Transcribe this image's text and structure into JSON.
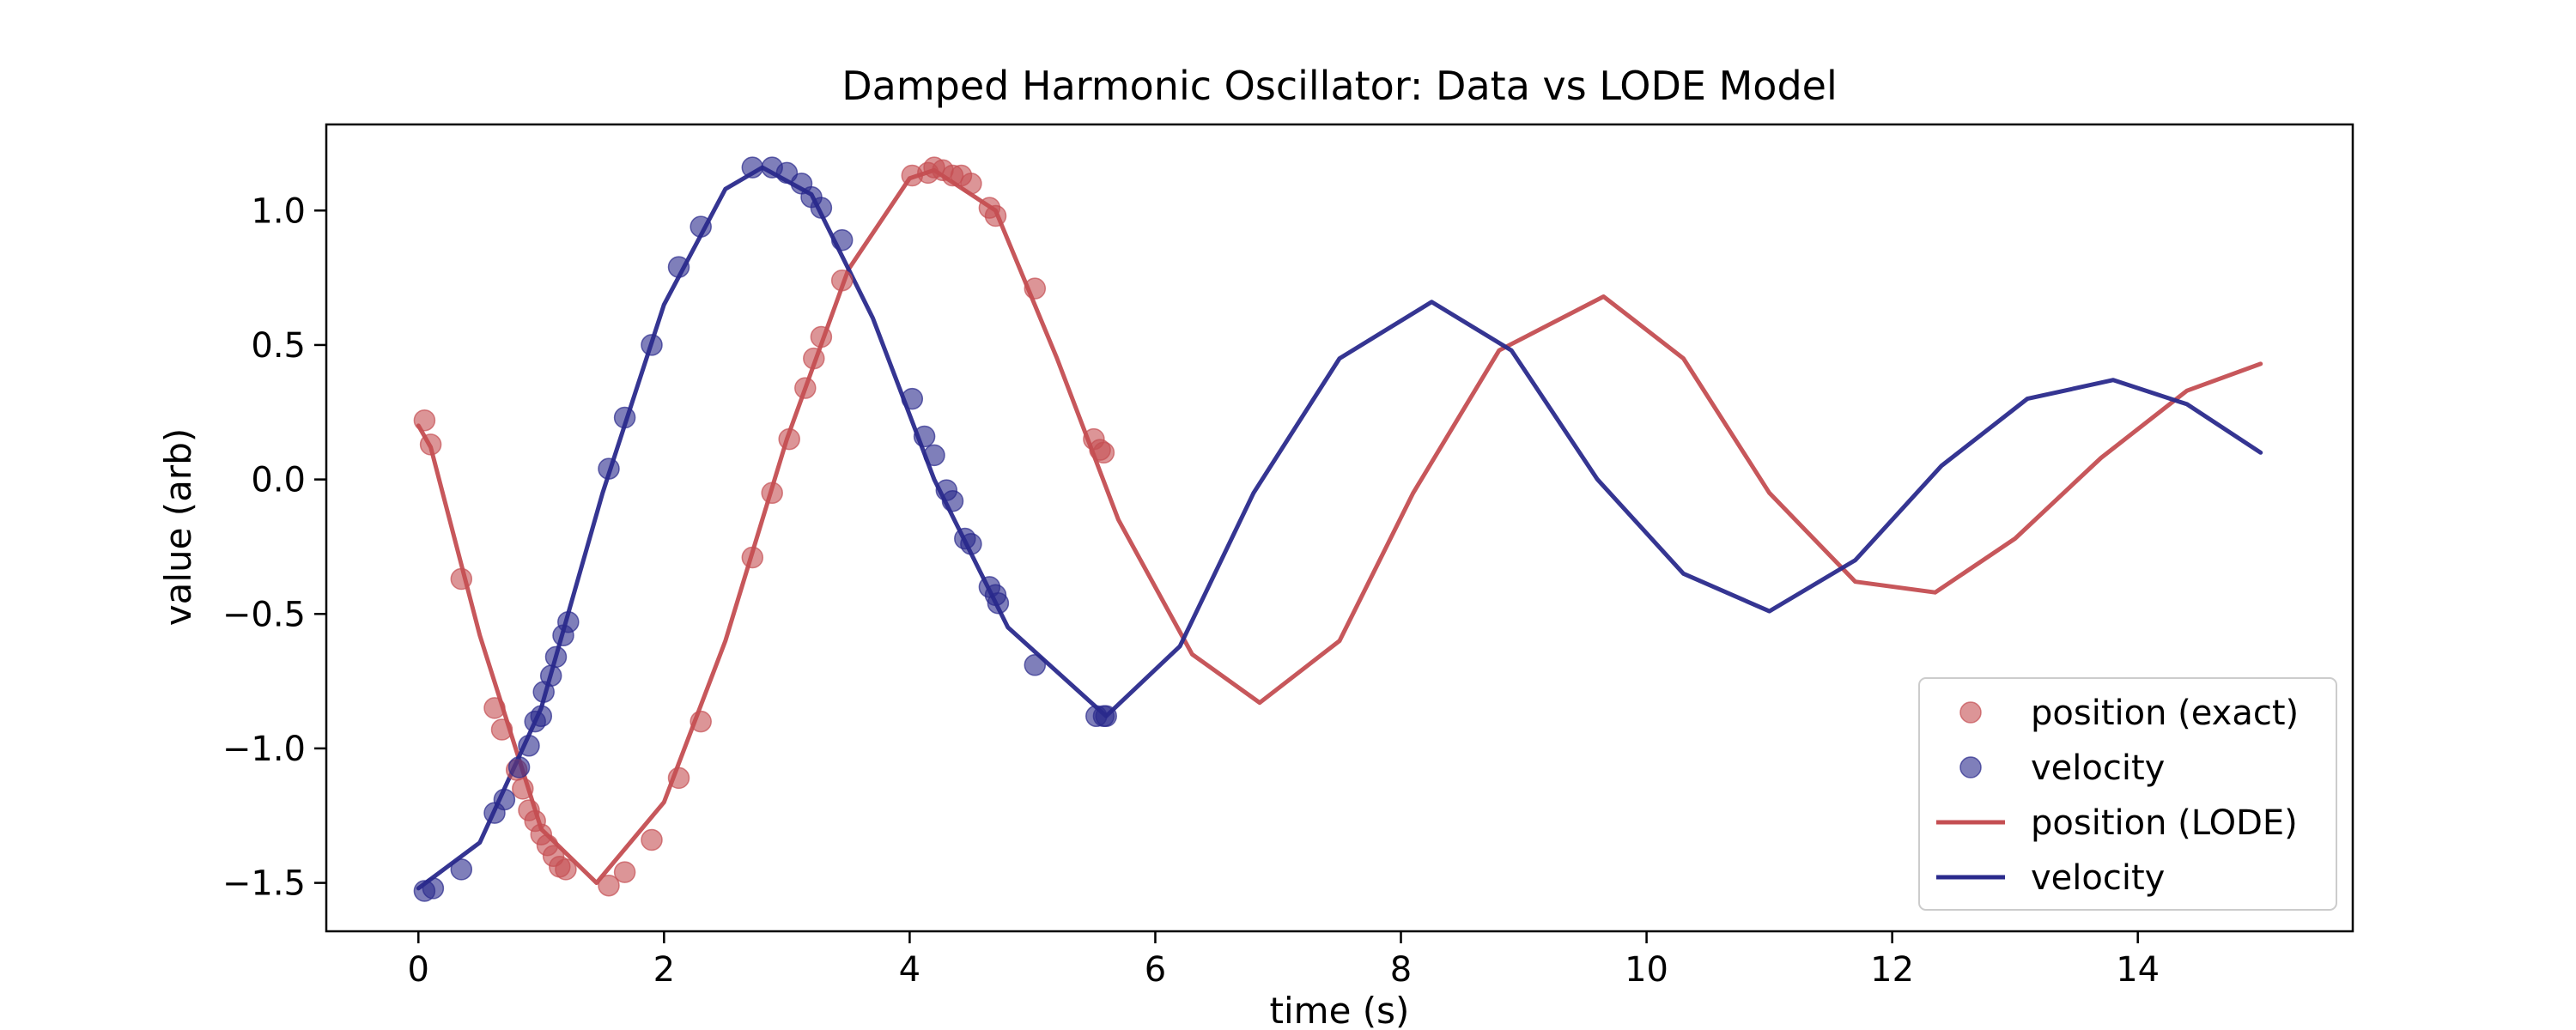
{
  "chart_data": {
    "type": "line",
    "title": "Damped Harmonic Oscillator: Data vs LODE Model",
    "xlabel": "time (s)",
    "ylabel": "value (arb)",
    "xlim": [
      -0.75,
      15.75
    ],
    "ylim": [
      -1.68,
      1.32
    ],
    "x_ticks": [
      0,
      2,
      4,
      6,
      8,
      10,
      12,
      14
    ],
    "y_ticks": [
      1.0,
      0.5,
      0.0,
      -0.5,
      -1.0,
      -1.5
    ],
    "x_tick_labels": [
      "0",
      "2",
      "4",
      "6",
      "8",
      "10",
      "12",
      "14"
    ],
    "y_tick_labels": [
      "1.0",
      "0.5",
      "0.0",
      "−0.5",
      "−1.0",
      "−1.5"
    ],
    "grid": false,
    "legend_position": "lower-right",
    "series": [
      {
        "name": "position (exact)",
        "kind": "scatter",
        "color": "#c44e52",
        "points": [
          [
            0.05,
            0.22
          ],
          [
            0.1,
            0.13
          ],
          [
            0.35,
            -0.37
          ],
          [
            0.62,
            -0.85
          ],
          [
            0.68,
            -0.93
          ],
          [
            0.8,
            -1.08
          ],
          [
            0.85,
            -1.15
          ],
          [
            0.9,
            -1.23
          ],
          [
            0.95,
            -1.27
          ],
          [
            1.0,
            -1.32
          ],
          [
            1.05,
            -1.36
          ],
          [
            1.1,
            -1.4
          ],
          [
            1.15,
            -1.44
          ],
          [
            1.2,
            -1.45
          ],
          [
            1.55,
            -1.51
          ],
          [
            1.68,
            -1.46
          ],
          [
            1.9,
            -1.34
          ],
          [
            2.12,
            -1.11
          ],
          [
            2.3,
            -0.9
          ],
          [
            2.72,
            -0.29
          ],
          [
            2.88,
            -0.05
          ],
          [
            3.02,
            0.15
          ],
          [
            3.15,
            0.34
          ],
          [
            3.22,
            0.45
          ],
          [
            3.28,
            0.53
          ],
          [
            3.45,
            0.74
          ],
          [
            4.02,
            1.13
          ],
          [
            4.15,
            1.14
          ],
          [
            4.2,
            1.16
          ],
          [
            4.27,
            1.15
          ],
          [
            4.35,
            1.13
          ],
          [
            4.42,
            1.13
          ],
          [
            4.5,
            1.1
          ],
          [
            4.65,
            1.01
          ],
          [
            4.7,
            0.98
          ],
          [
            5.02,
            0.71
          ],
          [
            5.5,
            0.15
          ],
          [
            5.55,
            0.11
          ],
          [
            5.58,
            0.1
          ]
        ]
      },
      {
        "name": "velocity",
        "kind": "scatter",
        "color": "#2a2a8c",
        "points": [
          [
            0.05,
            -1.53
          ],
          [
            0.12,
            -1.52
          ],
          [
            0.35,
            -1.45
          ],
          [
            0.62,
            -1.24
          ],
          [
            0.7,
            -1.19
          ],
          [
            0.82,
            -1.07
          ],
          [
            0.9,
            -0.99
          ],
          [
            0.95,
            -0.9
          ],
          [
            1.0,
            -0.88
          ],
          [
            1.02,
            -0.79
          ],
          [
            1.08,
            -0.73
          ],
          [
            1.12,
            -0.66
          ],
          [
            1.18,
            -0.58
          ],
          [
            1.22,
            -0.53
          ],
          [
            1.55,
            0.04
          ],
          [
            1.68,
            0.23
          ],
          [
            1.9,
            0.5
          ],
          [
            2.12,
            0.79
          ],
          [
            2.3,
            0.94
          ],
          [
            2.72,
            1.16
          ],
          [
            2.88,
            1.16
          ],
          [
            3.0,
            1.14
          ],
          [
            3.12,
            1.1
          ],
          [
            3.2,
            1.05
          ],
          [
            3.28,
            1.01
          ],
          [
            3.45,
            0.89
          ],
          [
            4.02,
            0.3
          ],
          [
            4.12,
            0.16
          ],
          [
            4.2,
            0.09
          ],
          [
            4.3,
            -0.04
          ],
          [
            4.35,
            -0.08
          ],
          [
            4.45,
            -0.22
          ],
          [
            4.5,
            -0.24
          ],
          [
            4.65,
            -0.4
          ],
          [
            4.7,
            -0.43
          ],
          [
            4.72,
            -0.46
          ],
          [
            5.02,
            -0.69
          ],
          [
            5.52,
            -0.88
          ],
          [
            5.58,
            -0.88
          ],
          [
            5.6,
            -0.88
          ]
        ]
      },
      {
        "name": "position (LODE)",
        "kind": "line",
        "color": "#c44e52",
        "points": [
          [
            0.0,
            0.2
          ],
          [
            0.1,
            0.12
          ],
          [
            0.5,
            -0.58
          ],
          [
            1.0,
            -1.3
          ],
          [
            1.45,
            -1.5
          ],
          [
            2.0,
            -1.2
          ],
          [
            2.5,
            -0.6
          ],
          [
            3.0,
            0.15
          ],
          [
            3.5,
            0.78
          ],
          [
            4.0,
            1.12
          ],
          [
            4.2,
            1.15
          ],
          [
            4.7,
            1.0
          ],
          [
            5.2,
            0.45
          ],
          [
            5.7,
            -0.15
          ],
          [
            6.3,
            -0.65
          ],
          [
            6.85,
            -0.83
          ],
          [
            7.5,
            -0.6
          ],
          [
            8.1,
            -0.05
          ],
          [
            8.8,
            0.48
          ],
          [
            9.65,
            0.68
          ],
          [
            10.3,
            0.45
          ],
          [
            11.0,
            -0.05
          ],
          [
            11.7,
            -0.38
          ],
          [
            12.35,
            -0.42
          ],
          [
            13.0,
            -0.22
          ],
          [
            13.7,
            0.08
          ],
          [
            14.4,
            0.33
          ],
          [
            15.0,
            0.43
          ]
        ]
      },
      {
        "name": "velocity",
        "kind": "line",
        "color": "#2a2a8c",
        "points": [
          [
            0.0,
            -1.52
          ],
          [
            0.5,
            -1.35
          ],
          [
            1.0,
            -0.85
          ],
          [
            1.5,
            -0.05
          ],
          [
            2.0,
            0.65
          ],
          [
            2.5,
            1.08
          ],
          [
            2.8,
            1.16
          ],
          [
            3.2,
            1.06
          ],
          [
            3.7,
            0.6
          ],
          [
            4.2,
            0.0
          ],
          [
            4.8,
            -0.55
          ],
          [
            5.6,
            -0.88
          ],
          [
            6.2,
            -0.62
          ],
          [
            6.8,
            -0.05
          ],
          [
            7.5,
            0.45
          ],
          [
            8.25,
            0.66
          ],
          [
            8.9,
            0.48
          ],
          [
            9.6,
            0.0
          ],
          [
            10.3,
            -0.35
          ],
          [
            11.0,
            -0.49
          ],
          [
            11.7,
            -0.3
          ],
          [
            12.4,
            0.05
          ],
          [
            13.1,
            0.3
          ],
          [
            13.8,
            0.37
          ],
          [
            14.4,
            0.28
          ],
          [
            15.0,
            0.1
          ]
        ]
      }
    ]
  }
}
